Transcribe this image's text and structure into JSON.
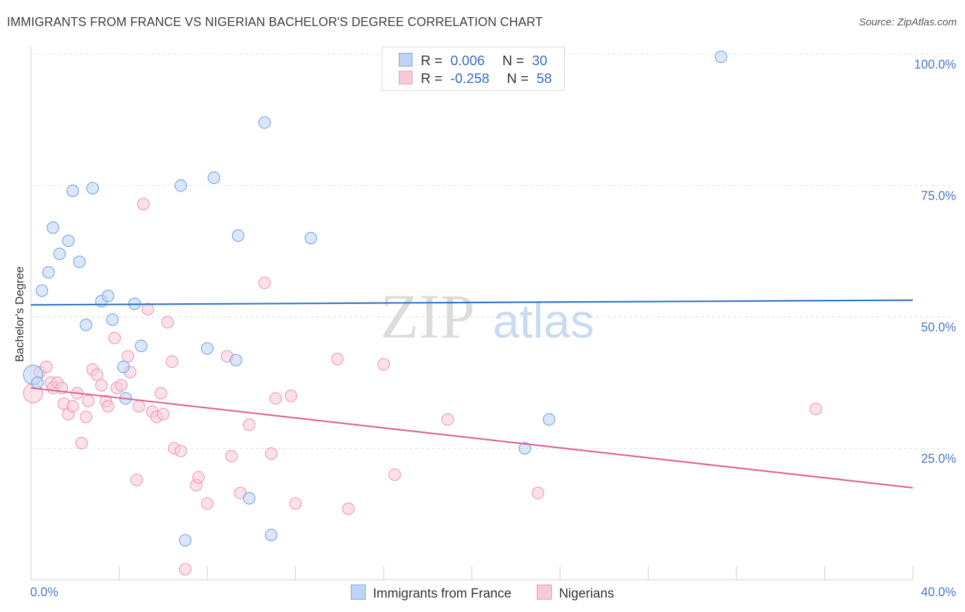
{
  "title": "IMMIGRANTS FROM FRANCE VS NIGERIAN BACHELOR'S DEGREE CORRELATION CHART",
  "source": "Source: ZipAtlas.com",
  "watermark": {
    "zip": "ZIP",
    "atlas": "atlas"
  },
  "legend": {
    "rows": [
      {
        "r_label": "R =",
        "r_value": "0.006",
        "n_label": "N =",
        "n_value": "30"
      },
      {
        "r_label": "R =",
        "r_value": "-0.258",
        "n_label": "N =",
        "n_value": "58"
      }
    ]
  },
  "bottom_legend": {
    "france": "Immigrants from France",
    "nigerians": "Nigerians"
  },
  "chart_data": {
    "type": "scatter",
    "title": "IMMIGRANTS FROM FRANCE VS NIGERIAN BACHELOR'S DEGREE CORRELATION CHART",
    "xlabel": "",
    "ylabel": "Bachelor's Degree",
    "xlim": [
      0,
      40
    ],
    "ylim": [
      0,
      104
    ],
    "x_tick_labels": [
      "0.0%",
      "40.0%"
    ],
    "y_ticks": [
      25,
      50,
      75,
      100
    ],
    "y_tick_labels": [
      "25.0%",
      "50.0%",
      "75.0%",
      "100.0%"
    ],
    "grid": true,
    "colors": {
      "france": "#7aa7e0",
      "france_fill": "#bdd4f4",
      "france_line": "#2b73cc",
      "nigerians": "#ee9ab6",
      "nigerians_fill": "#f8cad9",
      "nigerians_line": "#e0608e"
    },
    "series": [
      {
        "name": "Immigrants from France",
        "trend": {
          "x": [
            0,
            40
          ],
          "y": [
            52.3,
            53.2
          ]
        },
        "points": [
          {
            "x": 0.1,
            "y": 39.0,
            "big": true
          },
          {
            "x": 0.3,
            "y": 37.5
          },
          {
            "x": 0.5,
            "y": 55.0
          },
          {
            "x": 0.8,
            "y": 58.5
          },
          {
            "x": 1.0,
            "y": 67.0
          },
          {
            "x": 1.3,
            "y": 62.0
          },
          {
            "x": 1.7,
            "y": 64.5
          },
          {
            "x": 1.9,
            "y": 74.0
          },
          {
            "x": 2.2,
            "y": 60.5
          },
          {
            "x": 2.5,
            "y": 48.5
          },
          {
            "x": 2.8,
            "y": 74.5
          },
          {
            "x": 3.2,
            "y": 53.0
          },
          {
            "x": 3.5,
            "y": 54.0
          },
          {
            "x": 3.7,
            "y": 49.5
          },
          {
            "x": 4.2,
            "y": 40.5
          },
          {
            "x": 4.3,
            "y": 34.5
          },
          {
            "x": 4.7,
            "y": 52.5
          },
          {
            "x": 5.0,
            "y": 44.5
          },
          {
            "x": 6.8,
            "y": 75.0
          },
          {
            "x": 7.0,
            "y": 7.5
          },
          {
            "x": 8.0,
            "y": 44.0
          },
          {
            "x": 8.3,
            "y": 76.5
          },
          {
            "x": 9.3,
            "y": 41.8
          },
          {
            "x": 9.4,
            "y": 65.5
          },
          {
            "x": 9.9,
            "y": 15.5
          },
          {
            "x": 10.6,
            "y": 87.0
          },
          {
            "x": 10.9,
            "y": 8.5
          },
          {
            "x": 12.7,
            "y": 65.0
          },
          {
            "x": 22.4,
            "y": 25.0
          },
          {
            "x": 23.5,
            "y": 30.5
          },
          {
            "x": 31.3,
            "y": 99.5
          }
        ]
      },
      {
        "name": "Nigerians",
        "trend": {
          "x": [
            0,
            40
          ],
          "y": [
            36.5,
            17.5
          ]
        },
        "points": [
          {
            "x": 0.1,
            "y": 35.5,
            "big": true
          },
          {
            "x": 0.4,
            "y": 39.5
          },
          {
            "x": 0.7,
            "y": 40.5
          },
          {
            "x": 0.9,
            "y": 37.5
          },
          {
            "x": 1.0,
            "y": 36.5
          },
          {
            "x": 1.2,
            "y": 37.5
          },
          {
            "x": 1.4,
            "y": 36.5
          },
          {
            "x": 1.5,
            "y": 33.5
          },
          {
            "x": 1.7,
            "y": 31.5
          },
          {
            "x": 1.9,
            "y": 33.0
          },
          {
            "x": 2.1,
            "y": 35.5
          },
          {
            "x": 2.3,
            "y": 26.0
          },
          {
            "x": 2.5,
            "y": 31.0
          },
          {
            "x": 2.6,
            "y": 34.0
          },
          {
            "x": 2.8,
            "y": 40.0
          },
          {
            "x": 3.0,
            "y": 39.0
          },
          {
            "x": 3.2,
            "y": 37.0
          },
          {
            "x": 3.4,
            "y": 34.0
          },
          {
            "x": 3.5,
            "y": 33.0
          },
          {
            "x": 3.8,
            "y": 46.0
          },
          {
            "x": 3.9,
            "y": 36.5
          },
          {
            "x": 4.1,
            "y": 37.0
          },
          {
            "x": 4.4,
            "y": 42.5
          },
          {
            "x": 4.5,
            "y": 39.5
          },
          {
            "x": 4.8,
            "y": 19.0
          },
          {
            "x": 4.9,
            "y": 33.0
          },
          {
            "x": 5.1,
            "y": 71.5
          },
          {
            "x": 5.3,
            "y": 51.5
          },
          {
            "x": 5.5,
            "y": 32.0
          },
          {
            "x": 5.7,
            "y": 31.0
          },
          {
            "x": 5.9,
            "y": 35.5
          },
          {
            "x": 6.0,
            "y": 31.5
          },
          {
            "x": 6.2,
            "y": 49.0
          },
          {
            "x": 6.4,
            "y": 41.5
          },
          {
            "x": 6.5,
            "y": 25.0
          },
          {
            "x": 6.8,
            "y": 24.5
          },
          {
            "x": 7.0,
            "y": 2.0
          },
          {
            "x": 7.5,
            "y": 18.0
          },
          {
            "x": 7.6,
            "y": 19.5
          },
          {
            "x": 8.0,
            "y": 14.5
          },
          {
            "x": 8.9,
            "y": 42.5
          },
          {
            "x": 9.1,
            "y": 23.5
          },
          {
            "x": 9.5,
            "y": 16.5
          },
          {
            "x": 9.9,
            "y": 29.5
          },
          {
            "x": 10.6,
            "y": 56.5
          },
          {
            "x": 10.9,
            "y": 24.0
          },
          {
            "x": 11.1,
            "y": 34.5
          },
          {
            "x": 11.8,
            "y": 35.0
          },
          {
            "x": 12.0,
            "y": 14.5
          },
          {
            "x": 13.9,
            "y": 42.0
          },
          {
            "x": 14.4,
            "y": 13.5
          },
          {
            "x": 16.0,
            "y": 41.0
          },
          {
            "x": 16.5,
            "y": 20.0
          },
          {
            "x": 18.9,
            "y": 30.5
          },
          {
            "x": 23.0,
            "y": 16.5
          },
          {
            "x": 35.6,
            "y": 32.5
          }
        ]
      }
    ]
  }
}
